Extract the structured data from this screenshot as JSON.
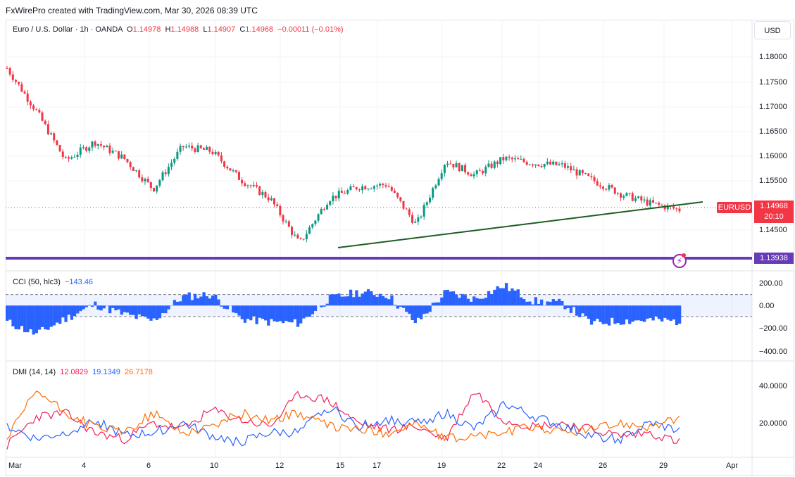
{
  "header": {
    "attribution": "FxWirePro created with TradingView.com, Mar 30, 2026 08:39 UTC"
  },
  "legend": {
    "symbol": "Euro / U.S. Dollar · 1h · OANDA",
    "open_label": "O",
    "open": "1.14978",
    "high_label": "H",
    "high": "1.14988",
    "low_label": "L",
    "low": "1.14907",
    "close_label": "C",
    "close": "1.14968",
    "change": "−0.00011 (−0.01%)"
  },
  "currency_button": "USD",
  "price_axis": {
    "ticks": [
      "1.18000",
      "1.17500",
      "1.17000",
      "1.16500",
      "1.16000",
      "1.15500",
      "1.14500"
    ]
  },
  "price_tags": {
    "symbol_tag": "EURUSD",
    "last_price": "1.14968",
    "countdown": "20:10",
    "support_price": "1.13938"
  },
  "cci": {
    "label": "CCI (50, hlc3)",
    "value": "−143.46",
    "ticks": [
      "200.00",
      "0.00",
      "−200.00",
      "−400.00"
    ]
  },
  "dmi": {
    "label": "DMI (14, 14)",
    "di_plus": "12.0829",
    "di_minus": "19.1349",
    "adx": "26.7178",
    "ticks": [
      "40.0000",
      "20.0000"
    ]
  },
  "time_axis": {
    "ticks": [
      "Mar",
      "4",
      "6",
      "10",
      "12",
      "15",
      "17",
      "19",
      "22",
      "24",
      "26",
      "29",
      "Apr"
    ]
  },
  "colors": {
    "up": "#089981",
    "down": "#f23645",
    "trendline": "#1b5e20",
    "support": "#673ab7",
    "cci": "#2962ff",
    "di_plus": "#f0245a",
    "di_minus": "#2962ff",
    "adx": "#ff6d00"
  },
  "chart_data": [
    {
      "type": "candlestick",
      "title": "Euro / U.S. Dollar · 1h · OANDA",
      "ylim": [
        1.1405,
        1.1835
      ],
      "x": [
        "Mar 2",
        "Mar 3",
        "Mar 4",
        "Mar 5",
        "Mar 6",
        "Mar 9",
        "Mar 10",
        "Mar 11",
        "Mar 12",
        "Mar 13",
        "Mar 15",
        "Mar 16",
        "Mar 17",
        "Mar 18",
        "Mar 19",
        "Mar 20",
        "Mar 22",
        "Mar 23",
        "Mar 24",
        "Mar 25",
        "Mar 26",
        "Mar 27",
        "Mar 29",
        "Mar 30"
      ],
      "close": [
        1.1795,
        1.1705,
        1.16,
        1.164,
        1.1605,
        1.154,
        1.163,
        1.162,
        1.156,
        1.152,
        1.1425,
        1.152,
        1.1545,
        1.155,
        1.1465,
        1.16,
        1.157,
        1.1605,
        1.1595,
        1.159,
        1.156,
        1.153,
        1.151,
        1.14968
      ],
      "last_close": 1.14968,
      "support_level": 1.13938,
      "trendline": {
        "start": {
          "x": "Mar 15",
          "y": 1.1418
        },
        "end": {
          "x": "Apr 1",
          "y": 1.151
        }
      }
    },
    {
      "type": "bar",
      "title": "CCI (50, hlc3)",
      "ylim": [
        -450,
        250
      ],
      "x": [
        "Mar 2",
        "Mar 3",
        "Mar 4",
        "Mar 5",
        "Mar 6",
        "Mar 9",
        "Mar 10",
        "Mar 11",
        "Mar 12",
        "Mar 13",
        "Mar 15",
        "Mar 16",
        "Mar 17",
        "Mar 18",
        "Mar 19",
        "Mar 20",
        "Mar 22",
        "Mar 23",
        "Mar 24",
        "Mar 25",
        "Mar 26",
        "Mar 27",
        "Mar 29",
        "Mar 30"
      ],
      "values": [
        -150,
        -260,
        -120,
        10,
        -80,
        -140,
        80,
        100,
        -120,
        -150,
        -160,
        60,
        120,
        100,
        -160,
        120,
        60,
        180,
        40,
        20,
        -160,
        -140,
        -130,
        -143.46
      ],
      "bands": [
        100,
        -100
      ]
    },
    {
      "type": "line",
      "title": "DMI (14, 14)",
      "ylim": [
        5,
        55
      ],
      "x": [
        "Mar 2",
        "Mar 3",
        "Mar 4",
        "Mar 5",
        "Mar 6",
        "Mar 9",
        "Mar 10",
        "Mar 11",
        "Mar 12",
        "Mar 13",
        "Mar 15",
        "Mar 16",
        "Mar 17",
        "Mar 18",
        "Mar 19",
        "Mar 20",
        "Mar 22",
        "Mar 23",
        "Mar 24",
        "Mar 25",
        "Mar 26",
        "Mar 27",
        "Mar 29",
        "Mar 30"
      ],
      "series": [
        {
          "name": "12.0829",
          "values": [
            10,
            28,
            30,
            18,
            14,
            24,
            20,
            32,
            26,
            22,
            42,
            38,
            24,
            20,
            22,
            14,
            44,
            26,
            22,
            24,
            20,
            16,
            18,
            12.0829
          ]
        },
        {
          "name": "19.1349",
          "values": [
            22,
            14,
            18,
            26,
            16,
            18,
            24,
            16,
            12,
            18,
            18,
            34,
            22,
            26,
            24,
            30,
            20,
            36,
            28,
            22,
            16,
            14,
            24,
            19.1349
          ]
        },
        {
          "name": "26.7178",
          "values": [
            14,
            44,
            30,
            22,
            18,
            30,
            18,
            22,
            30,
            26,
            30,
            22,
            20,
            18,
            24,
            14,
            16,
            18,
            22,
            18,
            20,
            24,
            22,
            26.7178
          ]
        }
      ]
    }
  ]
}
